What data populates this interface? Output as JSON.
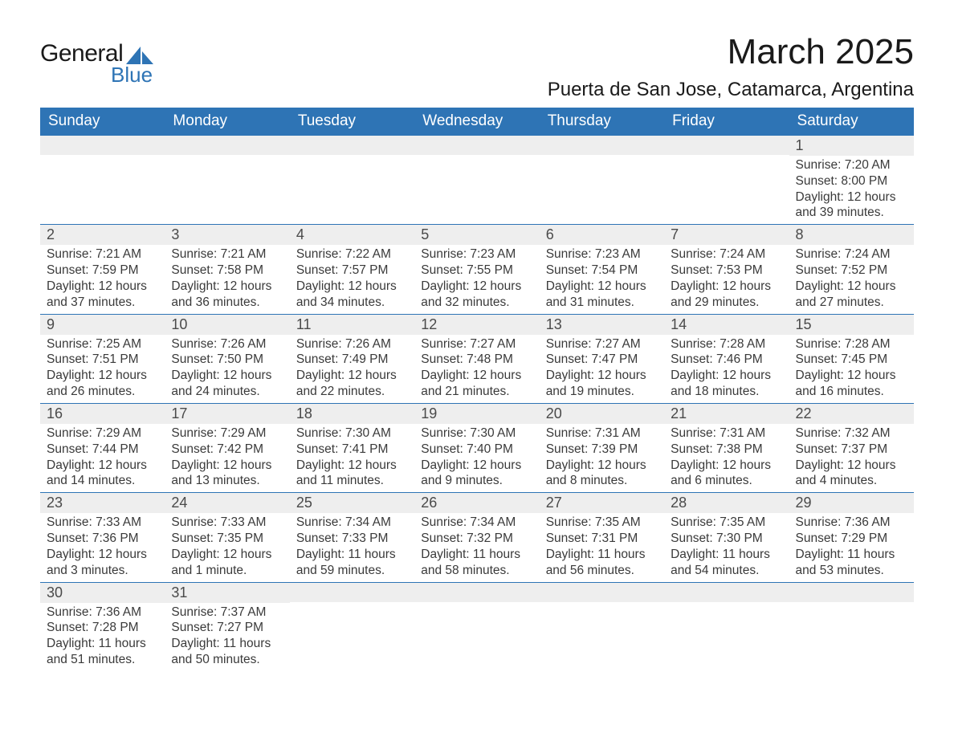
{
  "logo": {
    "text1": "General",
    "text2": "Blue",
    "shape_color": "#2e74b5"
  },
  "header": {
    "title": "March 2025",
    "location": "Puerta de San Jose, Catamarca, Argentina"
  },
  "calendar": {
    "type": "table",
    "header_bg": "#2e74b5",
    "header_fg": "#ffffff",
    "daybar_bg": "#eeeeee",
    "border_color": "#2e74b5",
    "text_color": "#3a3a3a",
    "weekdays": [
      "Sunday",
      "Monday",
      "Tuesday",
      "Wednesday",
      "Thursday",
      "Friday",
      "Saturday"
    ],
    "weeks": [
      [
        null,
        null,
        null,
        null,
        null,
        null,
        {
          "n": "1",
          "sunrise": "7:20 AM",
          "sunset": "8:00 PM",
          "dl": "12 hours and 39 minutes."
        }
      ],
      [
        {
          "n": "2",
          "sunrise": "7:21 AM",
          "sunset": "7:59 PM",
          "dl": "12 hours and 37 minutes."
        },
        {
          "n": "3",
          "sunrise": "7:21 AM",
          "sunset": "7:58 PM",
          "dl": "12 hours and 36 minutes."
        },
        {
          "n": "4",
          "sunrise": "7:22 AM",
          "sunset": "7:57 PM",
          "dl": "12 hours and 34 minutes."
        },
        {
          "n": "5",
          "sunrise": "7:23 AM",
          "sunset": "7:55 PM",
          "dl": "12 hours and 32 minutes."
        },
        {
          "n": "6",
          "sunrise": "7:23 AM",
          "sunset": "7:54 PM",
          "dl": "12 hours and 31 minutes."
        },
        {
          "n": "7",
          "sunrise": "7:24 AM",
          "sunset": "7:53 PM",
          "dl": "12 hours and 29 minutes."
        },
        {
          "n": "8",
          "sunrise": "7:24 AM",
          "sunset": "7:52 PM",
          "dl": "12 hours and 27 minutes."
        }
      ],
      [
        {
          "n": "9",
          "sunrise": "7:25 AM",
          "sunset": "7:51 PM",
          "dl": "12 hours and 26 minutes."
        },
        {
          "n": "10",
          "sunrise": "7:26 AM",
          "sunset": "7:50 PM",
          "dl": "12 hours and 24 minutes."
        },
        {
          "n": "11",
          "sunrise": "7:26 AM",
          "sunset": "7:49 PM",
          "dl": "12 hours and 22 minutes."
        },
        {
          "n": "12",
          "sunrise": "7:27 AM",
          "sunset": "7:48 PM",
          "dl": "12 hours and 21 minutes."
        },
        {
          "n": "13",
          "sunrise": "7:27 AM",
          "sunset": "7:47 PM",
          "dl": "12 hours and 19 minutes."
        },
        {
          "n": "14",
          "sunrise": "7:28 AM",
          "sunset": "7:46 PM",
          "dl": "12 hours and 18 minutes."
        },
        {
          "n": "15",
          "sunrise": "7:28 AM",
          "sunset": "7:45 PM",
          "dl": "12 hours and 16 minutes."
        }
      ],
      [
        {
          "n": "16",
          "sunrise": "7:29 AM",
          "sunset": "7:44 PM",
          "dl": "12 hours and 14 minutes."
        },
        {
          "n": "17",
          "sunrise": "7:29 AM",
          "sunset": "7:42 PM",
          "dl": "12 hours and 13 minutes."
        },
        {
          "n": "18",
          "sunrise": "7:30 AM",
          "sunset": "7:41 PM",
          "dl": "12 hours and 11 minutes."
        },
        {
          "n": "19",
          "sunrise": "7:30 AM",
          "sunset": "7:40 PM",
          "dl": "12 hours and 9 minutes."
        },
        {
          "n": "20",
          "sunrise": "7:31 AM",
          "sunset": "7:39 PM",
          "dl": "12 hours and 8 minutes."
        },
        {
          "n": "21",
          "sunrise": "7:31 AM",
          "sunset": "7:38 PM",
          "dl": "12 hours and 6 minutes."
        },
        {
          "n": "22",
          "sunrise": "7:32 AM",
          "sunset": "7:37 PM",
          "dl": "12 hours and 4 minutes."
        }
      ],
      [
        {
          "n": "23",
          "sunrise": "7:33 AM",
          "sunset": "7:36 PM",
          "dl": "12 hours and 3 minutes."
        },
        {
          "n": "24",
          "sunrise": "7:33 AM",
          "sunset": "7:35 PM",
          "dl": "12 hours and 1 minute."
        },
        {
          "n": "25",
          "sunrise": "7:34 AM",
          "sunset": "7:33 PM",
          "dl": "11 hours and 59 minutes."
        },
        {
          "n": "26",
          "sunrise": "7:34 AM",
          "sunset": "7:32 PM",
          "dl": "11 hours and 58 minutes."
        },
        {
          "n": "27",
          "sunrise": "7:35 AM",
          "sunset": "7:31 PM",
          "dl": "11 hours and 56 minutes."
        },
        {
          "n": "28",
          "sunrise": "7:35 AM",
          "sunset": "7:30 PM",
          "dl": "11 hours and 54 minutes."
        },
        {
          "n": "29",
          "sunrise": "7:36 AM",
          "sunset": "7:29 PM",
          "dl": "11 hours and 53 minutes."
        }
      ],
      [
        {
          "n": "30",
          "sunrise": "7:36 AM",
          "sunset": "7:28 PM",
          "dl": "11 hours and 51 minutes."
        },
        {
          "n": "31",
          "sunrise": "7:37 AM",
          "sunset": "7:27 PM",
          "dl": "11 hours and 50 minutes."
        },
        null,
        null,
        null,
        null,
        null
      ]
    ],
    "labels": {
      "sunrise": "Sunrise:",
      "sunset": "Sunset:",
      "daylight": "Daylight:"
    }
  }
}
